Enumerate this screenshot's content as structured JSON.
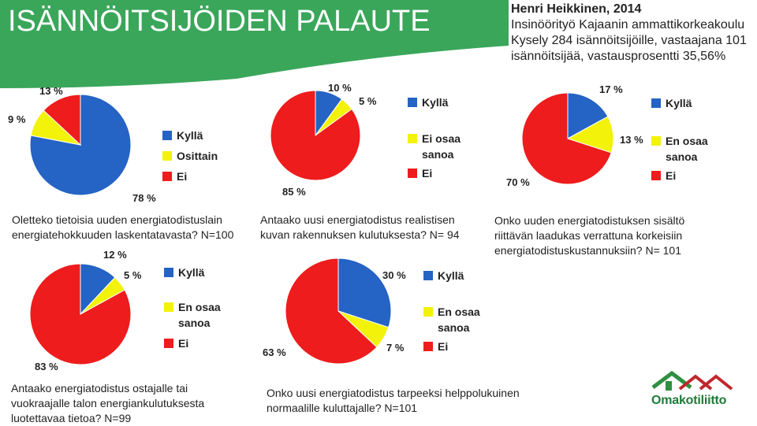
{
  "header": {
    "title": "ISÄNNÖITSIJÖIDEN PALAUTE",
    "author": "Henri Heikkinen, 2014",
    "line2": "Insinöörityö Kajaanin ammattikorkeakoulu",
    "line3": "Kysely 284 isännöitsijöille,  vastaajana 101",
    "line4": "isännöitsijää, vastausprosentti 35,56%"
  },
  "colors": {
    "banner": "#3aa65a",
    "kylla": "#2563c4",
    "middle": "#f2f20a",
    "ei": "#ee1c1c"
  },
  "logo": {
    "text": "Omakotiliitto",
    "icon": "house-roofs-icon"
  },
  "chart_data": [
    {
      "type": "pie",
      "categories": [
        "Kyllä",
        "Ositta­in",
        "Ei"
      ],
      "legend": [
        "Kyllä",
        "Osittain",
        "Ei"
      ],
      "values": [
        78,
        9,
        13
      ],
      "labels": [
        "78 %",
        "9 %",
        "13 %"
      ],
      "question": [
        "Oletteko tietoisia uuden energiatodistuslain",
        "energiatehokkuuden laskentatavasta? N=100"
      ]
    },
    {
      "type": "pie",
      "legend": [
        "Kyllä",
        "Ei osaa",
        "sanoa",
        "Ei"
      ],
      "values": [
        10,
        5,
        85
      ],
      "labels": [
        "10 %",
        "5 %",
        "85 %"
      ],
      "question": [
        "Antaako uusi energiatodistus realistisen",
        "kuvan rakennuksen kulutuksesta? N= 94"
      ]
    },
    {
      "type": "pie",
      "legend": [
        "Kyllä",
        "En osaa",
        "sanoa",
        "Ei"
      ],
      "values": [
        17,
        13,
        70
      ],
      "labels": [
        "17 %",
        "13 %",
        "70 %"
      ],
      "question": [
        "Onko uuden energiatodistuksen sisältö",
        "riittävän laadukas verrattuna korkeisiin",
        "energiatodistuskustannuksiin? N= 101"
      ]
    },
    {
      "type": "pie",
      "legend": [
        "Kyllä",
        "En osaa",
        "sanoa",
        "Ei"
      ],
      "values": [
        12,
        5,
        83
      ],
      "labels": [
        "12 %",
        "5 %",
        "83 %"
      ],
      "question": [
        "Antaako energiatodistus ostajalle tai",
        "vuokraajalle talon energiankulutuksesta",
        "luotettavaa tietoa? N=99"
      ]
    },
    {
      "type": "pie",
      "legend": [
        "Kyllä",
        "En osaa",
        "sanoa",
        "Ei"
      ],
      "values": [
        30,
        7,
        63
      ],
      "labels": [
        "30 %",
        "7 %",
        "63 %"
      ],
      "question": [
        "Onko uusi energiatodistus tarpeeksi helppolukuinen",
        "normaalille kuluttajalle? N=101"
      ]
    }
  ]
}
